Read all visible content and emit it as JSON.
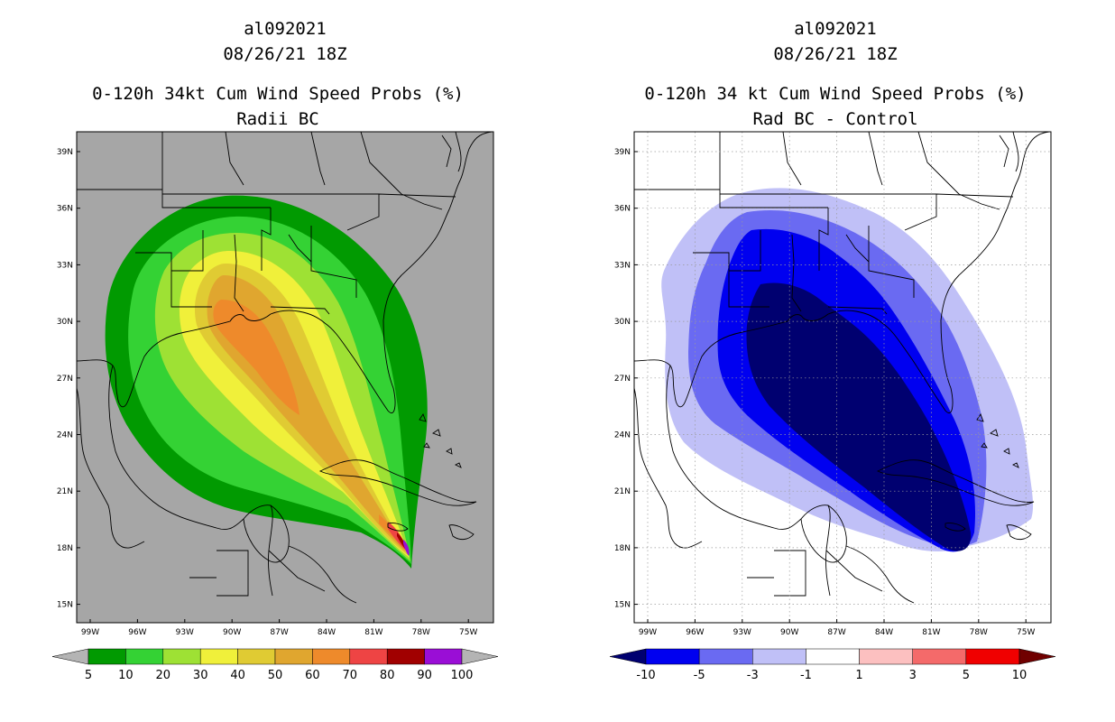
{
  "panels": [
    {
      "id": "radii",
      "title_lines": [
        "al092021",
        "08/26/21 18Z",
        "0-120h 34kt Cum Wind Speed Probs (%)",
        "Radii BC"
      ],
      "background": "#a6a6a6",
      "grid": false,
      "lon_labels": [
        "99W",
        "96W",
        "93W",
        "90W",
        "87W",
        "84W",
        "81W",
        "78W",
        "75W"
      ],
      "lat_labels": [
        "39N",
        "36N",
        "33N",
        "30N",
        "27N",
        "24N",
        "21N",
        "18N",
        "15N"
      ],
      "colorbar": {
        "labels": [
          "5",
          "10",
          "20",
          "30",
          "40",
          "50",
          "60",
          "70",
          "80",
          "90",
          "100"
        ],
        "colors": [
          "#019a01",
          "#34d234",
          "#9ee134",
          "#f0f03a",
          "#e0cb33",
          "#e0a62f",
          "#ee8a2b",
          "#ee4444",
          "#a10000",
          "#9a0ed6"
        ],
        "under": "#b4b4b4",
        "over": "#b4b4b4"
      },
      "levels": [
        {
          "name": "p5",
          "color": "#019a01"
        },
        {
          "name": "p10",
          "color": "#34d234"
        },
        {
          "name": "p20",
          "color": "#9ee134"
        },
        {
          "name": "p30",
          "color": "#f0f03a"
        },
        {
          "name": "p40",
          "color": "#e0cb33"
        },
        {
          "name": "p50",
          "color": "#e0a62f"
        },
        {
          "name": "p60",
          "color": "#ee8a2b"
        },
        {
          "name": "p70",
          "color": "#ee4444"
        },
        {
          "name": "p80",
          "color": "#a10000"
        },
        {
          "name": "p90",
          "color": "#9a0ed6"
        }
      ]
    },
    {
      "id": "diff",
      "title_lines": [
        "al092021",
        "08/26/21 18Z",
        "0-120h 34 kt Cum Wind Speed Probs (%)",
        "Rad BC - Control"
      ],
      "background": "#ffffff",
      "grid": true,
      "lon_labels": [
        "99W",
        "96W",
        "93W",
        "90W",
        "87W",
        "84W",
        "81W",
        "78W",
        "75W"
      ],
      "lat_labels": [
        "39N",
        "36N",
        "33N",
        "30N",
        "27N",
        "24N",
        "21N",
        "18N",
        "15N"
      ],
      "colorbar": {
        "labels": [
          "-10",
          "-5",
          "-3",
          "-1",
          "1",
          "3",
          "5",
          "10"
        ],
        "colors": [
          "#0000f0",
          "#6a6af2",
          "#c0c0f7",
          "#ffffff",
          "#fcc0c0",
          "#f46a6a",
          "#f00000"
        ],
        "under": "#000070",
        "over": "#700000"
      },
      "levels": [
        {
          "name": "m1",
          "color": "#c0c0f7"
        },
        {
          "name": "m3",
          "color": "#6a6af2"
        },
        {
          "name": "m5",
          "color": "#0000f0"
        },
        {
          "name": "m10",
          "color": "#000070"
        }
      ]
    }
  ]
}
